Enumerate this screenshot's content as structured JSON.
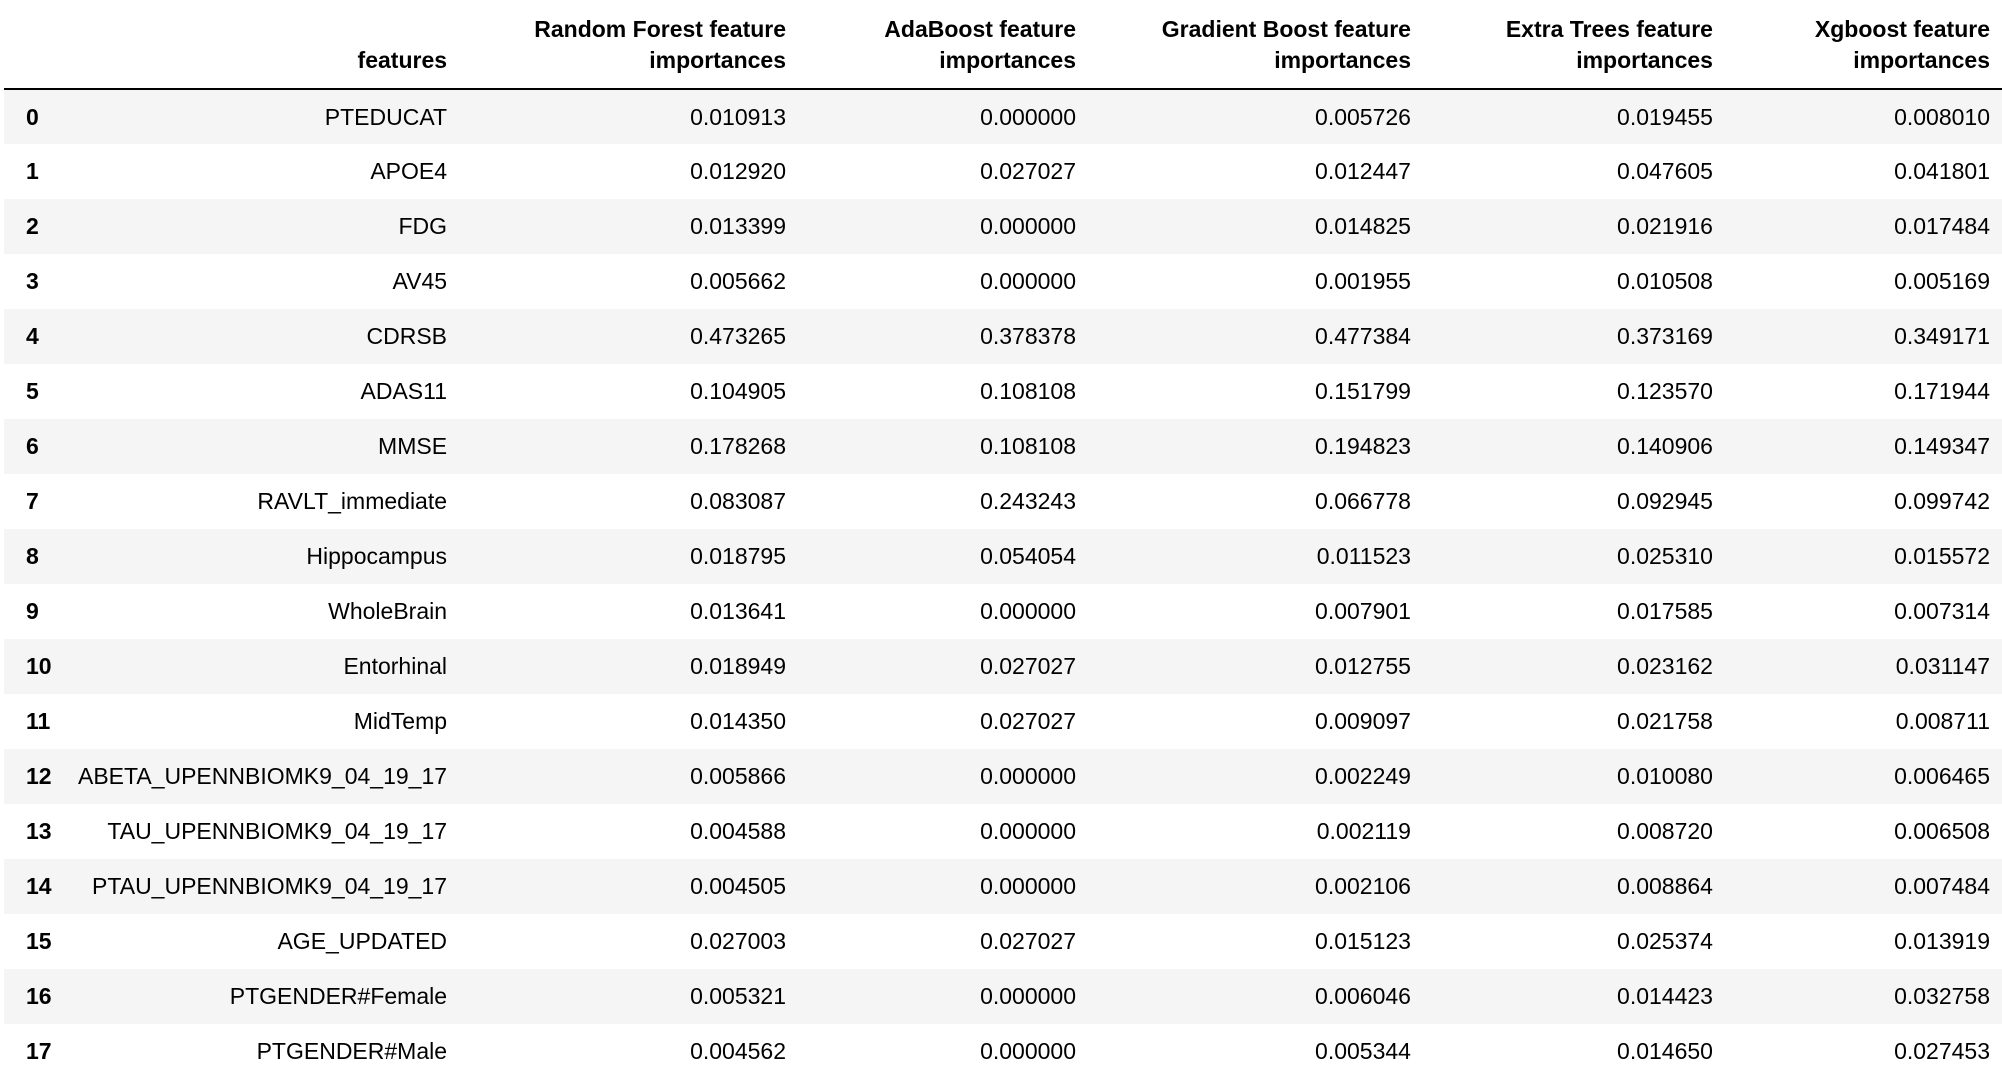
{
  "table": {
    "columns": [
      "",
      "features",
      "Random Forest feature importances",
      "AdaBoost feature importances",
      "Gradient Boost feature importances",
      "Extra Trees feature importances",
      "Xgboost feature importances"
    ],
    "rows": [
      [
        "0",
        "PTEDUCAT",
        "0.010913",
        "0.000000",
        "0.005726",
        "0.019455",
        "0.008010"
      ],
      [
        "1",
        "APOE4",
        "0.012920",
        "0.027027",
        "0.012447",
        "0.047605",
        "0.041801"
      ],
      [
        "2",
        "FDG",
        "0.013399",
        "0.000000",
        "0.014825",
        "0.021916",
        "0.017484"
      ],
      [
        "3",
        "AV45",
        "0.005662",
        "0.000000",
        "0.001955",
        "0.010508",
        "0.005169"
      ],
      [
        "4",
        "CDRSB",
        "0.473265",
        "0.378378",
        "0.477384",
        "0.373169",
        "0.349171"
      ],
      [
        "5",
        "ADAS11",
        "0.104905",
        "0.108108",
        "0.151799",
        "0.123570",
        "0.171944"
      ],
      [
        "6",
        "MMSE",
        "0.178268",
        "0.108108",
        "0.194823",
        "0.140906",
        "0.149347"
      ],
      [
        "7",
        "RAVLT_immediate",
        "0.083087",
        "0.243243",
        "0.066778",
        "0.092945",
        "0.099742"
      ],
      [
        "8",
        "Hippocampus",
        "0.018795",
        "0.054054",
        "0.011523",
        "0.025310",
        "0.015572"
      ],
      [
        "9",
        "WholeBrain",
        "0.013641",
        "0.000000",
        "0.007901",
        "0.017585",
        "0.007314"
      ],
      [
        "10",
        "Entorhinal",
        "0.018949",
        "0.027027",
        "0.012755",
        "0.023162",
        "0.031147"
      ],
      [
        "11",
        "MidTemp",
        "0.014350",
        "0.027027",
        "0.009097",
        "0.021758",
        "0.008711"
      ],
      [
        "12",
        "ABETA_UPENNBIOMK9_04_19_17",
        "0.005866",
        "0.000000",
        "0.002249",
        "0.010080",
        "0.006465"
      ],
      [
        "13",
        "TAU_UPENNBIOMK9_04_19_17",
        "0.004588",
        "0.000000",
        "0.002119",
        "0.008720",
        "0.006508"
      ],
      [
        "14",
        "PTAU_UPENNBIOMK9_04_19_17",
        "0.004505",
        "0.000000",
        "0.002106",
        "0.008864",
        "0.007484"
      ],
      [
        "15",
        "AGE_UPDATED",
        "0.027003",
        "0.027027",
        "0.015123",
        "0.025374",
        "0.013919"
      ],
      [
        "16",
        "PTGENDER#Female",
        "0.005321",
        "0.000000",
        "0.006046",
        "0.014423",
        "0.032758"
      ],
      [
        "17",
        "PTGENDER#Male",
        "0.004562",
        "0.000000",
        "0.005344",
        "0.014650",
        "0.027453"
      ]
    ]
  }
}
